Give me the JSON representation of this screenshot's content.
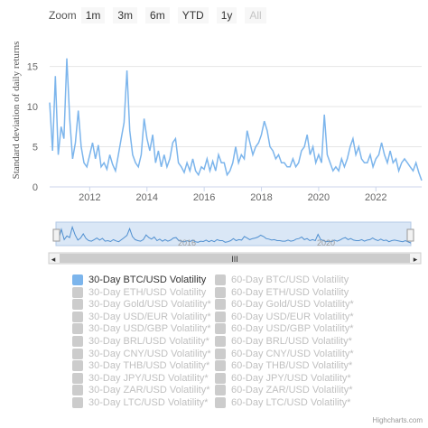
{
  "range_selector": {
    "label": "Zoom",
    "buttons": [
      {
        "label": "1m",
        "enabled": true
      },
      {
        "label": "3m",
        "enabled": true
      },
      {
        "label": "6m",
        "enabled": true
      },
      {
        "label": "YTD",
        "enabled": true
      },
      {
        "label": "1y",
        "enabled": true
      },
      {
        "label": "All",
        "enabled": false
      }
    ]
  },
  "navigator": {
    "year_labels": [
      "2016",
      "2020"
    ],
    "scroll_grip": "III",
    "left_arrow": "◂",
    "right_arrow": "▸"
  },
  "colors": {
    "series": "#7cb5ec",
    "navigator_fill": "#dae7f6",
    "grid": "#e6e6e6",
    "legend_inactive": "#cccccc",
    "legend_inactive_text": "#c0c0c0"
  },
  "chart_data": {
    "type": "line",
    "title": "",
    "ylabel": "Standard deviation of daily returns",
    "xlabel": "",
    "ylim": [
      0,
      19
    ],
    "yticks": [
      0,
      5,
      10,
      15
    ],
    "xtick_labels": [
      "2012",
      "2014",
      "2016",
      "2018",
      "2020",
      "2022"
    ],
    "xtick_years": [
      2012,
      2014,
      2016,
      2018,
      2020,
      2022
    ],
    "xrange": [
      2010.6,
      2023.6
    ],
    "grid": true,
    "legend_position": "bottom",
    "series": [
      {
        "name": "30-Day BTC/USD Volatility",
        "visible": true,
        "x": [
          2010.6,
          2010.7,
          2010.8,
          2010.9,
          2011.0,
          2011.1,
          2011.2,
          2011.3,
          2011.4,
          2011.5,
          2011.6,
          2011.7,
          2011.8,
          2011.9,
          2012.0,
          2012.1,
          2012.2,
          2012.3,
          2012.4,
          2012.5,
          2012.6,
          2012.7,
          2012.8,
          2012.9,
          2013.0,
          2013.1,
          2013.2,
          2013.3,
          2013.4,
          2013.5,
          2013.6,
          2013.7,
          2013.8,
          2013.9,
          2014.0,
          2014.1,
          2014.2,
          2014.3,
          2014.4,
          2014.5,
          2014.6,
          2014.7,
          2014.8,
          2014.9,
          2015.0,
          2015.1,
          2015.2,
          2015.3,
          2015.4,
          2015.5,
          2015.6,
          2015.7,
          2015.8,
          2015.9,
          2016.0,
          2016.1,
          2016.2,
          2016.3,
          2016.4,
          2016.5,
          2016.6,
          2016.7,
          2016.8,
          2016.9,
          2017.0,
          2017.1,
          2017.2,
          2017.3,
          2017.4,
          2017.5,
          2017.6,
          2017.7,
          2017.8,
          2017.9,
          2018.0,
          2018.1,
          2018.2,
          2018.3,
          2018.4,
          2018.5,
          2018.6,
          2018.7,
          2018.8,
          2018.9,
          2019.0,
          2019.1,
          2019.2,
          2019.3,
          2019.4,
          2019.5,
          2019.6,
          2019.7,
          2019.8,
          2019.9,
          2020.0,
          2020.1,
          2020.2,
          2020.3,
          2020.4,
          2020.5,
          2020.6,
          2020.7,
          2020.8,
          2020.9,
          2021.0,
          2021.1,
          2021.2,
          2021.3,
          2021.4,
          2021.5,
          2021.6,
          2021.7,
          2021.8,
          2021.9,
          2022.0,
          2022.1,
          2022.2,
          2022.3,
          2022.4,
          2022.5,
          2022.6,
          2022.7,
          2022.8,
          2022.9,
          2023.0,
          2023.1,
          2023.2,
          2023.3,
          2023.4,
          2023.5,
          2023.6
        ],
        "y": [
          10.5,
          4.5,
          13.8,
          4.0,
          7.5,
          6.0,
          16.0,
          8.5,
          3.5,
          5.5,
          9.5,
          5.0,
          3.0,
          2.5,
          4.0,
          5.5,
          3.5,
          5.2,
          2.5,
          3.0,
          2.2,
          4.0,
          2.8,
          2.0,
          4.0,
          6.0,
          8.0,
          14.5,
          7.0,
          4.0,
          3.0,
          2.5,
          4.0,
          8.5,
          6.0,
          4.5,
          6.5,
          3.0,
          4.5,
          2.5,
          4.0,
          2.5,
          3.5,
          5.5,
          6.0,
          3.0,
          2.5,
          1.8,
          3.0,
          2.0,
          3.5,
          2.0,
          1.5,
          2.5,
          2.2,
          3.5,
          2.0,
          3.2,
          2.0,
          4.0,
          3.0,
          3.0,
          1.5,
          2.0,
          3.0,
          5.0,
          3.0,
          4.0,
          3.5,
          7.0,
          5.5,
          4.0,
          5.0,
          5.5,
          6.5,
          8.2,
          7.0,
          5.0,
          4.5,
          3.5,
          4.0,
          3.0,
          3.0,
          2.5,
          2.5,
          3.5,
          2.5,
          3.0,
          4.5,
          5.0,
          6.5,
          4.0,
          5.0,
          3.0,
          4.0,
          3.0,
          9.0,
          4.0,
          3.0,
          2.0,
          2.5,
          2.0,
          3.5,
          2.5,
          3.5,
          5.0,
          6.0,
          4.0,
          5.0,
          3.5,
          3.0,
          3.0,
          4.0,
          2.5,
          3.5,
          4.0,
          5.5,
          4.0,
          3.0,
          4.5,
          3.0,
          3.5,
          2.0,
          3.0,
          3.5,
          3.0,
          2.5,
          2.0,
          3.0,
          1.8,
          0.8
        ]
      },
      {
        "name": "60-Day BTC/USD Volatility",
        "visible": false
      },
      {
        "name": "30-Day ETH/USD Volatility",
        "visible": false
      },
      {
        "name": "60-Day ETH/USD Volatility",
        "visible": false
      },
      {
        "name": "30-Day Gold/USD Volatility*",
        "visible": false
      },
      {
        "name": "60-Day Gold/USD Volatility*",
        "visible": false
      },
      {
        "name": "30-Day USD/EUR Volatility*",
        "visible": false
      },
      {
        "name": "60-Day USD/EUR Volatility*",
        "visible": false
      },
      {
        "name": "30-Day USD/GBP Volatility*",
        "visible": false
      },
      {
        "name": "60-Day USD/GBP Volatility*",
        "visible": false
      },
      {
        "name": "30-Day BRL/USD Volatility*",
        "visible": false
      },
      {
        "name": "60-Day BRL/USD Volatility*",
        "visible": false
      },
      {
        "name": "30-Day CNY/USD Volatility*",
        "visible": false
      },
      {
        "name": "60-Day CNY/USD Volatility*",
        "visible": false
      },
      {
        "name": "30-Day THB/USD Volatility*",
        "visible": false
      },
      {
        "name": "60-Day THB/USD Volatility*",
        "visible": false
      },
      {
        "name": "30-Day JPY/USD Volatility*",
        "visible": false
      },
      {
        "name": "60-Day JPY/USD Volatility*",
        "visible": false
      },
      {
        "name": "30-Day ZAR/USD Volatility*",
        "visible": false
      },
      {
        "name": "60-Day ZAR/USD Volatility*",
        "visible": false
      },
      {
        "name": "30-Day LTC/USD Volatility*",
        "visible": false
      },
      {
        "name": "60-Day LTC/USD Volatility*",
        "visible": false
      }
    ]
  },
  "credits": "Highcharts.com"
}
